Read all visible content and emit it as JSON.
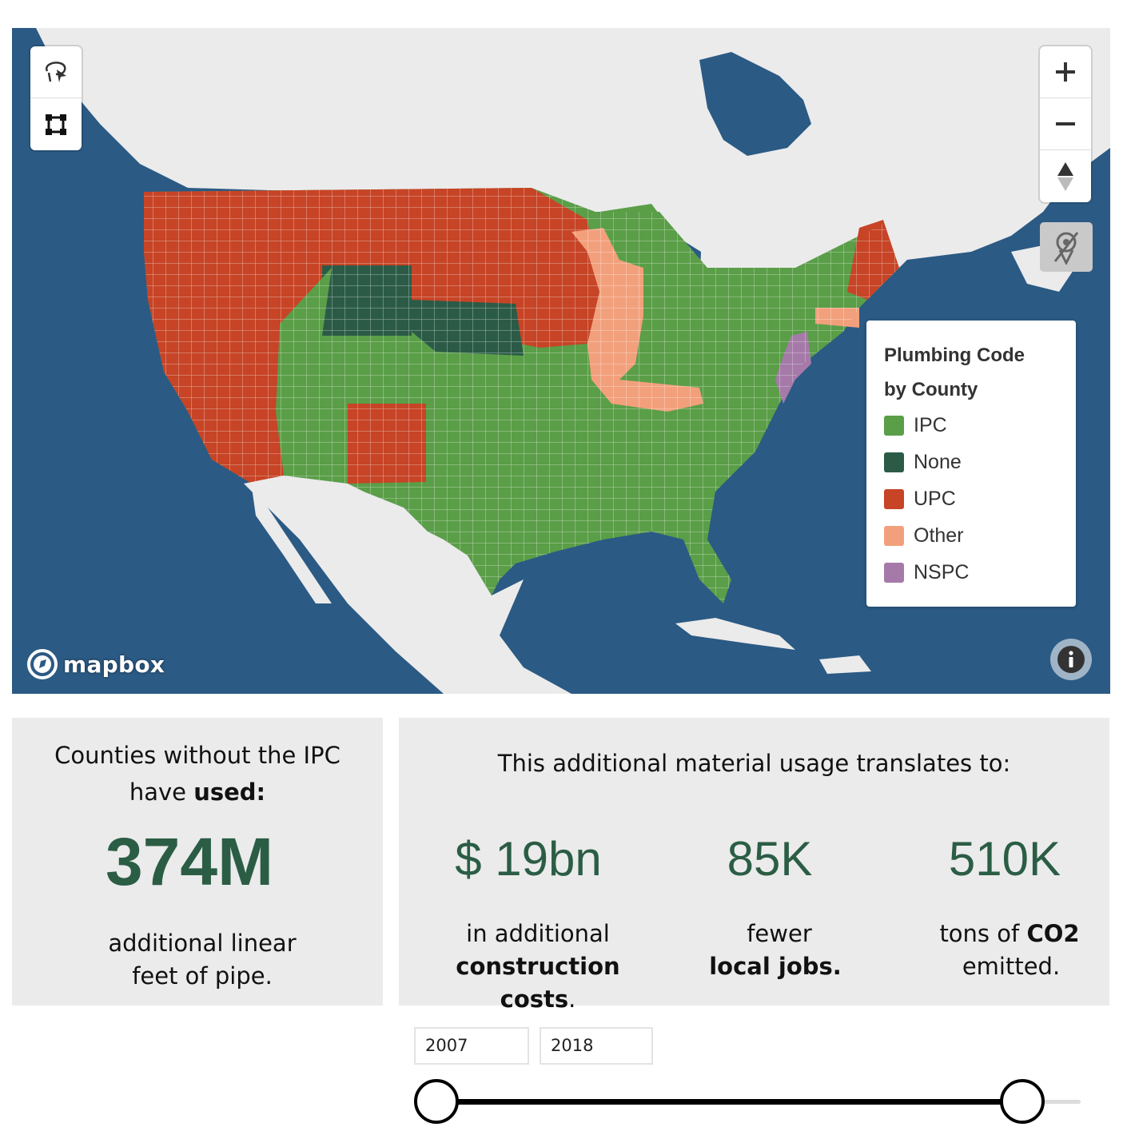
{
  "map": {
    "attribution": "mapbox",
    "legend": {
      "title_line1": "Plumbing Code",
      "title_line2": "by County",
      "items": [
        {
          "label": "IPC",
          "color": "#5a9e48"
        },
        {
          "label": "None",
          "color": "#2b5b47"
        },
        {
          "label": "UPC",
          "color": "#c74426"
        },
        {
          "label": "Other",
          "color": "#f2a07c"
        },
        {
          "label": "NSPC",
          "color": "#a57aa8"
        }
      ]
    },
    "colors": {
      "water": "#2b5a84",
      "land": "#ebebeb"
    }
  },
  "stats": {
    "left": {
      "line1": "Counties without the IPC",
      "line2_pre": "have ",
      "line2_bold": "used:",
      "value": "374M",
      "foot1": "additional linear",
      "foot2": "feet of pipe."
    },
    "right": {
      "heading": "This additional material usage translates to:",
      "metrics": [
        {
          "value": "$ 19bn",
          "cap1": "in additional",
          "cap2_bold": "construction costs",
          "cap2_tail": "."
        },
        {
          "value": "85K",
          "cap1": "fewer",
          "cap2_bold": "local jobs.",
          "cap2_tail": ""
        },
        {
          "value": "510K",
          "cap1_pre": "tons of ",
          "cap1_bold": "CO2",
          "cap2": "emitted."
        }
      ]
    }
  },
  "slider": {
    "start": "2007",
    "end": "2018"
  }
}
